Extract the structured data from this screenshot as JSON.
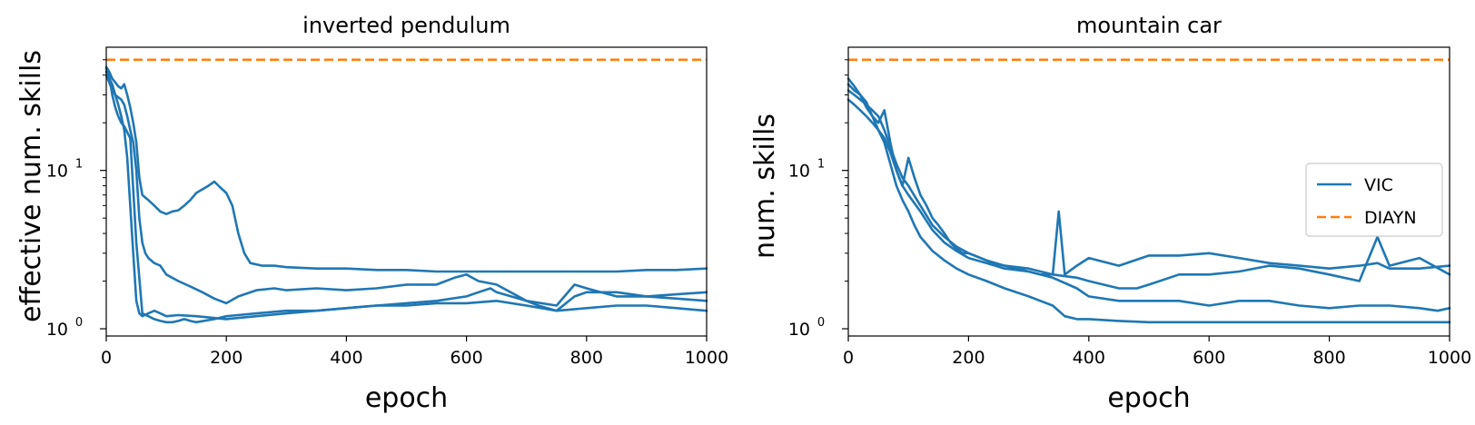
{
  "chart_data": [
    {
      "type": "line",
      "title": "inverted pendulum",
      "xlabel": "epoch",
      "ylabel": "effective num. skills",
      "xlim": [
        0,
        1000
      ],
      "ylim": [
        0.9,
        60
      ],
      "yscale": "log",
      "xticks": [
        "0",
        "200",
        "400",
        "600",
        "800",
        "1000"
      ],
      "yticks": [
        {
          "value": 1,
          "base": "10",
          "exp": "0"
        },
        {
          "value": 10,
          "base": "10",
          "exp": "1"
        }
      ],
      "legend": null,
      "series": [
        {
          "name": "VIC",
          "color": "#1f77b4",
          "style": "solid",
          "x": [
            0,
            5,
            10,
            15,
            20,
            25,
            30,
            35,
            40,
            45,
            50,
            55,
            60,
            70,
            80,
            90,
            100,
            110,
            120,
            130,
            140,
            150,
            160,
            170,
            180,
            190,
            200,
            210,
            220,
            230,
            240,
            260,
            280,
            300,
            350,
            400,
            450,
            500,
            550,
            600,
            650,
            700,
            750,
            800,
            850,
            900,
            950,
            1000
          ],
          "y": [
            45,
            42,
            38,
            36,
            34,
            33,
            35,
            30,
            25,
            20,
            15,
            9,
            7,
            6.5,
            6,
            5.5,
            5.3,
            5.5,
            5.6,
            6,
            6.5,
            7.2,
            7.6,
            8,
            8.5,
            7.8,
            7.2,
            6,
            4,
            3,
            2.6,
            2.5,
            2.5,
            2.45,
            2.4,
            2.4,
            2.35,
            2.35,
            2.3,
            2.3,
            2.3,
            2.3,
            2.3,
            2.3,
            2.3,
            2.35,
            2.35,
            2.4
          ]
        },
        {
          "name": "VIC",
          "color": "#1f77b4",
          "style": "solid",
          "x": [
            0,
            5,
            10,
            15,
            20,
            25,
            30,
            35,
            40,
            45,
            50,
            55,
            60,
            65,
            70,
            80,
            90,
            100,
            120,
            140,
            160,
            180,
            200,
            220,
            250,
            280,
            300,
            350,
            400,
            450,
            500,
            550,
            580,
            600,
            620,
            650,
            700,
            720,
            750,
            780,
            800,
            850,
            900,
            950,
            1000
          ],
          "y": [
            40,
            36,
            32,
            30,
            29,
            28,
            26,
            22,
            18,
            15,
            10,
            5,
            3.5,
            3,
            2.8,
            2.6,
            2.5,
            2.2,
            2,
            1.85,
            1.7,
            1.55,
            1.45,
            1.6,
            1.75,
            1.8,
            1.75,
            1.8,
            1.75,
            1.8,
            1.9,
            1.9,
            2.1,
            2.2,
            2.0,
            1.9,
            1.5,
            1.4,
            1.3,
            1.6,
            1.7,
            1.7,
            1.6,
            1.65,
            1.7
          ]
        },
        {
          "name": "VIC",
          "color": "#1f77b4",
          "style": "solid",
          "x": [
            0,
            5,
            10,
            15,
            20,
            25,
            30,
            35,
            40,
            45,
            50,
            55,
            60,
            70,
            80,
            90,
            100,
            120,
            150,
            200,
            250,
            300,
            350,
            400,
            450,
            500,
            550,
            600,
            620,
            640,
            650,
            700,
            750,
            780,
            800,
            850,
            900,
            950,
            1000
          ],
          "y": [
            42,
            38,
            35,
            30,
            26,
            22,
            18,
            12,
            6,
            3,
            1.5,
            1.25,
            1.2,
            1.25,
            1.3,
            1.25,
            1.2,
            1.22,
            1.2,
            1.15,
            1.2,
            1.25,
            1.3,
            1.35,
            1.4,
            1.45,
            1.5,
            1.6,
            1.7,
            1.8,
            1.7,
            1.5,
            1.4,
            1.9,
            1.8,
            1.6,
            1.6,
            1.55,
            1.5
          ]
        },
        {
          "name": "VIC",
          "color": "#1f77b4",
          "style": "solid",
          "x": [
            0,
            5,
            10,
            15,
            20,
            25,
            30,
            40,
            50,
            60,
            70,
            80,
            90,
            100,
            110,
            120,
            130,
            140,
            150,
            180,
            200,
            250,
            300,
            350,
            400,
            450,
            500,
            550,
            600,
            650,
            700,
            750,
            800,
            850,
            900,
            950,
            1000
          ],
          "y": [
            44,
            40,
            30,
            25,
            22,
            20,
            19,
            16,
            3.5,
            1.25,
            1.2,
            1.15,
            1.12,
            1.1,
            1.1,
            1.12,
            1.15,
            1.12,
            1.1,
            1.15,
            1.2,
            1.25,
            1.3,
            1.3,
            1.35,
            1.4,
            1.4,
            1.45,
            1.45,
            1.5,
            1.4,
            1.3,
            1.35,
            1.4,
            1.4,
            1.35,
            1.3
          ]
        },
        {
          "name": "DIAYN",
          "color": "#ff7f0e",
          "style": "dashed",
          "x": [
            0,
            1000
          ],
          "y": [
            50,
            50
          ]
        }
      ]
    },
    {
      "type": "line",
      "title": "mountain car",
      "xlabel": "epoch",
      "ylabel": "num. skills",
      "xlim": [
        0,
        1000
      ],
      "ylim": [
        0.9,
        60
      ],
      "yscale": "log",
      "xticks": [
        "0",
        "200",
        "400",
        "600",
        "800",
        "1000"
      ],
      "yticks": [
        {
          "value": 1,
          "base": "10",
          "exp": "0"
        },
        {
          "value": 10,
          "base": "10",
          "exp": "1"
        }
      ],
      "legend": {
        "placement": "center-right",
        "entries": [
          "VIC",
          "DIAYN"
        ]
      },
      "series": [
        {
          "name": "VIC",
          "color": "#1f77b4",
          "style": "solid",
          "x": [
            0,
            10,
            20,
            30,
            40,
            50,
            60,
            70,
            80,
            90,
            100,
            110,
            120,
            130,
            140,
            150,
            160,
            170,
            180,
            190,
            200,
            220,
            240,
            260,
            280,
            300,
            320,
            340,
            350,
            360,
            380,
            400,
            450,
            500,
            550,
            600,
            650,
            700,
            750,
            800,
            850,
            880,
            900,
            950,
            1000
          ],
          "y": [
            35,
            32,
            30,
            25,
            22,
            20,
            24,
            15,
            10,
            8,
            12,
            9,
            7,
            6,
            5,
            4.5,
            4,
            3.5,
            3.2,
            3,
            3,
            2.8,
            2.6,
            2.5,
            2.4,
            2.3,
            2.2,
            2.2,
            5.5,
            2.2,
            2.5,
            2.8,
            2.5,
            2.9,
            2.9,
            3,
            2.8,
            2.6,
            2.5,
            2.4,
            2.5,
            2.6,
            2.4,
            2.4,
            2.5
          ]
        },
        {
          "name": "VIC",
          "color": "#1f77b4",
          "style": "solid",
          "x": [
            0,
            10,
            20,
            30,
            40,
            50,
            60,
            70,
            80,
            90,
            100,
            120,
            140,
            160,
            180,
            200,
            230,
            260,
            300,
            340,
            380,
            400,
            450,
            480,
            500,
            550,
            600,
            650,
            700,
            750,
            800,
            850,
            880,
            900,
            950,
            1000
          ],
          "y": [
            32,
            30,
            28,
            26,
            24,
            22,
            18,
            14,
            11,
            9,
            8,
            6,
            4.5,
            3.8,
            3.3,
            3,
            2.7,
            2.5,
            2.4,
            2.2,
            2.1,
            2,
            1.8,
            1.8,
            1.9,
            2.2,
            2.2,
            2.3,
            2.5,
            2.4,
            2.2,
            2.0,
            3.8,
            2.5,
            2.8,
            2.2
          ]
        },
        {
          "name": "VIC",
          "color": "#1f77b4",
          "style": "solid",
          "x": [
            0,
            10,
            20,
            30,
            40,
            50,
            60,
            70,
            80,
            90,
            100,
            120,
            140,
            160,
            180,
            200,
            230,
            260,
            300,
            340,
            380,
            400,
            450,
            500,
            550,
            600,
            650,
            700,
            750,
            800,
            850,
            900,
            950,
            980,
            1000
          ],
          "y": [
            28,
            26,
            24,
            22,
            20,
            18,
            16,
            13,
            10,
            8,
            7,
            5.5,
            4.2,
            3.5,
            3.1,
            2.8,
            2.6,
            2.4,
            2.3,
            2.1,
            1.8,
            1.6,
            1.5,
            1.5,
            1.5,
            1.4,
            1.5,
            1.5,
            1.4,
            1.35,
            1.4,
            1.4,
            1.35,
            1.3,
            1.35
          ]
        },
        {
          "name": "VIC",
          "color": "#1f77b4",
          "style": "solid",
          "x": [
            0,
            10,
            20,
            30,
            40,
            50,
            60,
            70,
            80,
            90,
            100,
            110,
            120,
            140,
            160,
            180,
            200,
            230,
            260,
            300,
            340,
            360,
            380,
            400,
            450,
            500,
            550,
            600,
            650,
            700,
            750,
            800,
            850,
            900,
            950,
            1000
          ],
          "y": [
            38,
            34,
            30,
            27,
            22,
            18,
            15,
            11,
            8,
            6.5,
            5.5,
            4.5,
            3.8,
            3.1,
            2.7,
            2.4,
            2.2,
            2,
            1.8,
            1.6,
            1.4,
            1.2,
            1.15,
            1.15,
            1.12,
            1.1,
            1.1,
            1.1,
            1.1,
            1.1,
            1.1,
            1.1,
            1.1,
            1.1,
            1.1,
            1.1
          ]
        },
        {
          "name": "DIAYN",
          "color": "#ff7f0e",
          "style": "dashed",
          "x": [
            0,
            1000
          ],
          "y": [
            50,
            50
          ]
        }
      ]
    }
  ]
}
